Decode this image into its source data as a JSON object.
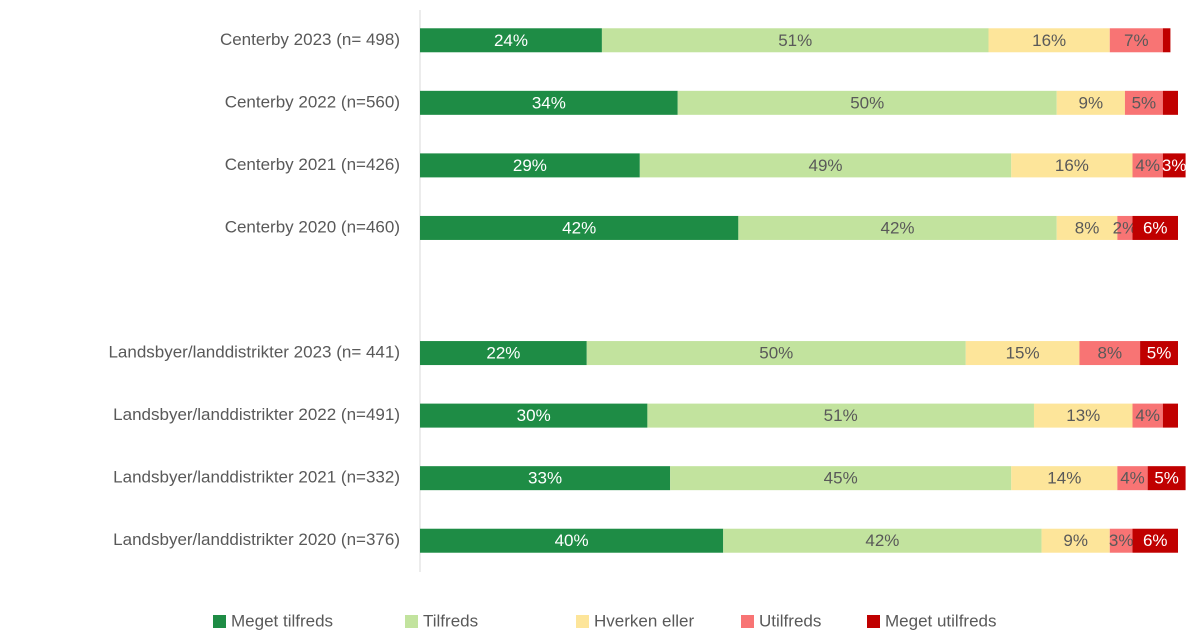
{
  "chart_data": {
    "type": "stacked-bar-horizontal",
    "categories": [
      "Centerby 2023 (n= 498)",
      "Centerby 2022 (n=560)",
      "Centerby 2021 (n=426)",
      "Centerby 2020 (n=460)",
      null,
      "Landsbyer/landdistrikter 2023 (n= 441)",
      "Landsbyer/landdistrikter 2022 (n=491)",
      "Landsbyer/landdistrikter 2021 (n=332)",
      "Landsbyer/landdistrikter 2020 (n=376)"
    ],
    "xlim": [
      0,
      100
    ],
    "legend": "bottom",
    "series": [
      {
        "name": "Meget tilfreds",
        "color": "#1e8c45",
        "values": [
          24,
          34,
          29,
          42,
          null,
          22,
          30,
          33,
          40
        ],
        "value_labels": [
          "24%",
          "34%",
          "29%",
          "42%",
          null,
          "22%",
          "30%",
          "33%",
          "40%"
        ]
      },
      {
        "name": "Tilfreds",
        "color": "#c2e39e",
        "values": [
          51,
          50,
          49,
          42,
          null,
          50,
          51,
          45,
          42
        ],
        "value_labels": [
          "51%",
          "50%",
          "49%",
          "42%",
          null,
          "50%",
          "51%",
          "45%",
          "42%"
        ]
      },
      {
        "name": "Hverken eller",
        "color": "#fde59a",
        "values": [
          16,
          9,
          16,
          8,
          null,
          15,
          13,
          14,
          9
        ],
        "value_labels": [
          "16%",
          "9%",
          "16%",
          "8%",
          null,
          "15%",
          "13%",
          "14%",
          "9%"
        ]
      },
      {
        "name": "Utilfreds",
        "color": "#f87474",
        "values": [
          7,
          5,
          4,
          2,
          null,
          8,
          4,
          4,
          3
        ],
        "value_labels": [
          "7%",
          "5%",
          "4%",
          "2%",
          null,
          "8%",
          "4%",
          "4%",
          "3%"
        ]
      },
      {
        "name": "Meget utilfreds",
        "color": "#c00000",
        "values": [
          1,
          2,
          3,
          6,
          null,
          5,
          2,
          5,
          6
        ],
        "value_labels": [
          null,
          null,
          "3%",
          "6%",
          null,
          "5%",
          null,
          "5%",
          "6%"
        ]
      }
    ]
  }
}
